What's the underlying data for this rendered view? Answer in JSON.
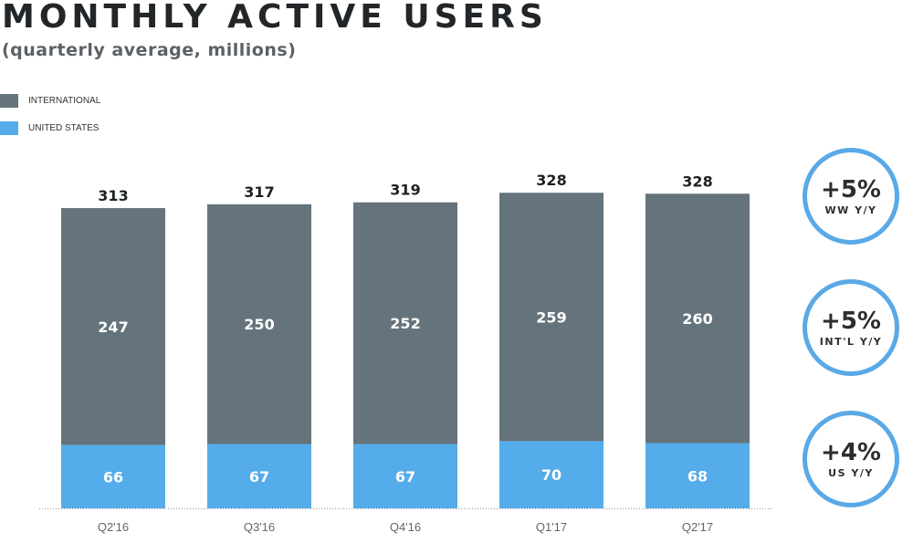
{
  "chart_data": {
    "type": "bar",
    "stacked": true,
    "title": "MONTHLY ACTIVE USERS",
    "subtitle": "(quarterly average, millions)",
    "categories": [
      "Q2'16",
      "Q3'16",
      "Q4'16",
      "Q1'17",
      "Q2'17"
    ],
    "series": [
      {
        "name": "UNITED STATES",
        "color": "#55acea",
        "values": [
          66,
          67,
          67,
          70,
          68
        ]
      },
      {
        "name": "INTERNATIONAL",
        "color": "#65737c",
        "values": [
          247,
          250,
          252,
          259,
          260
        ]
      }
    ],
    "totals": [
      313,
      317,
      319,
      328,
      328
    ],
    "legend_placement": "top-left",
    "ylim": [
      0,
      340
    ],
    "grid": false
  },
  "legend": [
    {
      "label": "INTERNATIONAL",
      "color": "#65737c"
    },
    {
      "label": "UNITED STATES",
      "color": "#55acea"
    }
  ],
  "callouts": [
    {
      "value": "+5%",
      "label": "WW Y/Y"
    },
    {
      "value": "+5%",
      "label": "INT'L Y/Y"
    },
    {
      "value": "+4%",
      "label": "US Y/Y"
    }
  ]
}
